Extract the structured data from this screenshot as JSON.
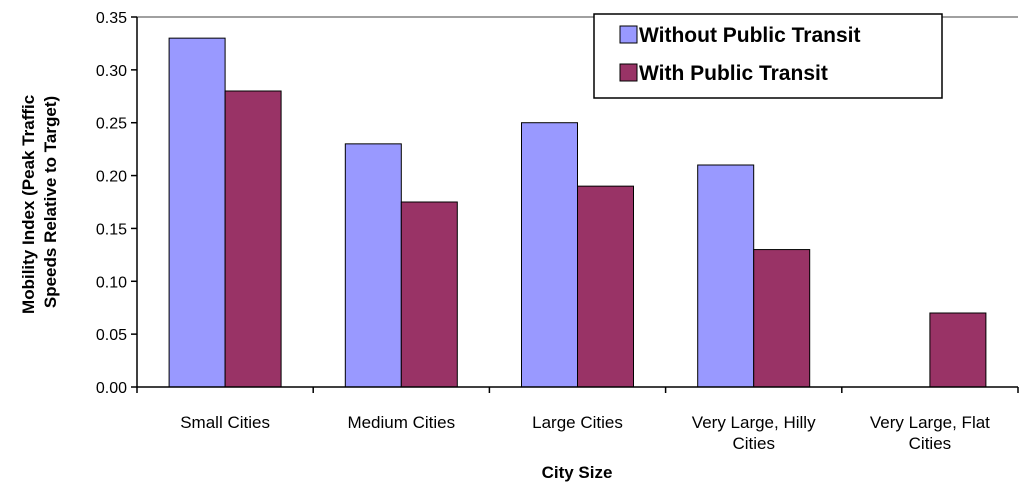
{
  "chart_data": {
    "type": "bar",
    "title": "",
    "xlabel": "City Size",
    "ylabel_lines": [
      "Mobility Index (Peak Traffic",
      "Speeds Relative to Target)"
    ],
    "categories": [
      [
        "Small Cities"
      ],
      [
        "Medium Cities"
      ],
      [
        "Large Cities"
      ],
      [
        "Very Large, Hilly",
        "Cities"
      ],
      [
        "Very Large, Flat",
        "Cities"
      ]
    ],
    "series": [
      {
        "name": "Without Public Transit",
        "color": "#9999FF",
        "values": [
          0.33,
          0.23,
          0.25,
          0.21,
          null
        ]
      },
      {
        "name": "With Public Transit",
        "color": "#993366",
        "values": [
          0.28,
          0.175,
          0.19,
          0.13,
          0.07
        ]
      }
    ],
    "ylim": [
      0,
      0.35
    ],
    "yticks": [
      "0.00",
      "0.05",
      "0.10",
      "0.15",
      "0.20",
      "0.25",
      "0.30",
      "0.35"
    ],
    "grid": "top line only",
    "legend": "top-right"
  }
}
